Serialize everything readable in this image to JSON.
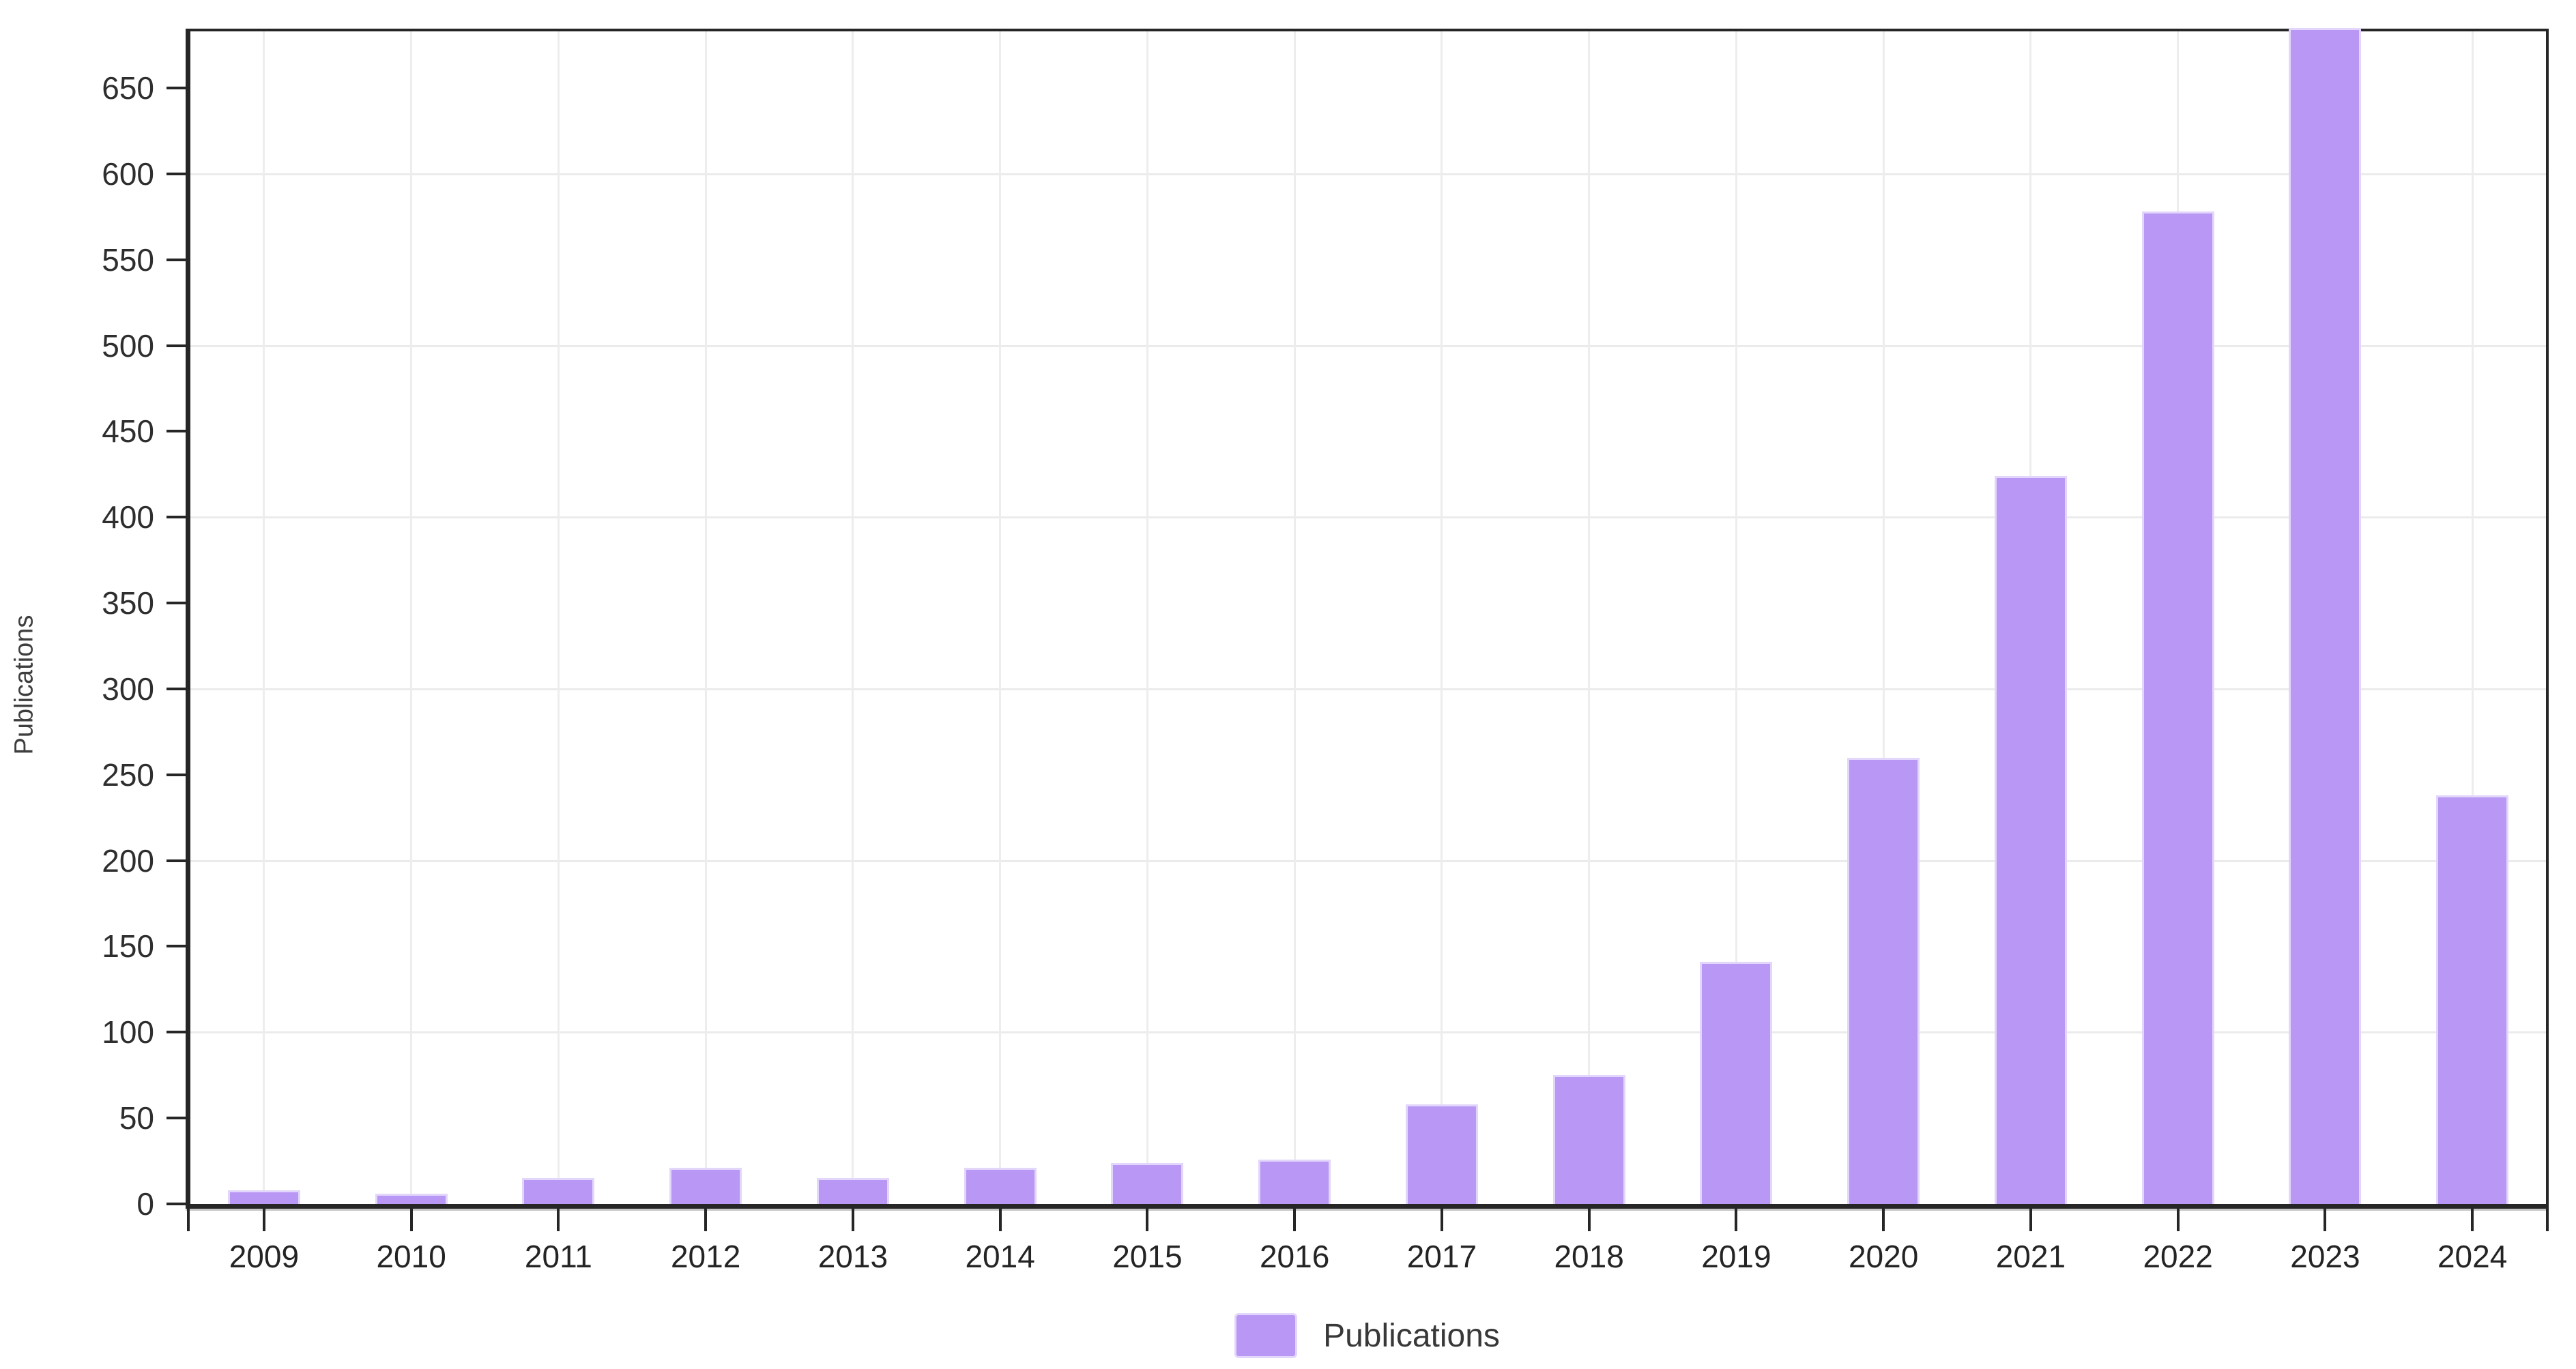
{
  "chart_data": {
    "type": "bar",
    "title": "",
    "categories": [
      "2009",
      "2010",
      "2011",
      "2012",
      "2013",
      "2014",
      "2015",
      "2016",
      "2017",
      "2018",
      "2019",
      "2020",
      "2021",
      "2022",
      "2023",
      "2024"
    ],
    "series": [
      {
        "name": "Publications",
        "values": [
          8,
          6,
          15,
          21,
          15,
          21,
          24,
          26,
          58,
          75,
          141,
          260,
          424,
          578,
          685,
          238
        ]
      }
    ],
    "xlabel": "",
    "ylabel": "Publications",
    "ylim": [
      0,
      683
    ],
    "yticks": [
      0,
      50,
      100,
      150,
      200,
      250,
      300,
      350,
      400,
      450,
      500,
      550,
      600,
      650
    ],
    "grid": {
      "horizontal_at": [
        100,
        200,
        300,
        400,
        500,
        600
      ],
      "vertical": "per-category"
    },
    "legend": {
      "position": "bottom",
      "entries": [
        "Publications"
      ]
    },
    "colors": {
      "bar_fill": "#b997f4",
      "bar_border": "#e2d6fb",
      "axis": "#262626",
      "gridline": "#ebebeb",
      "tick_text": "#2e2e2e",
      "axis_title_text": "#3e3e3e"
    }
  }
}
